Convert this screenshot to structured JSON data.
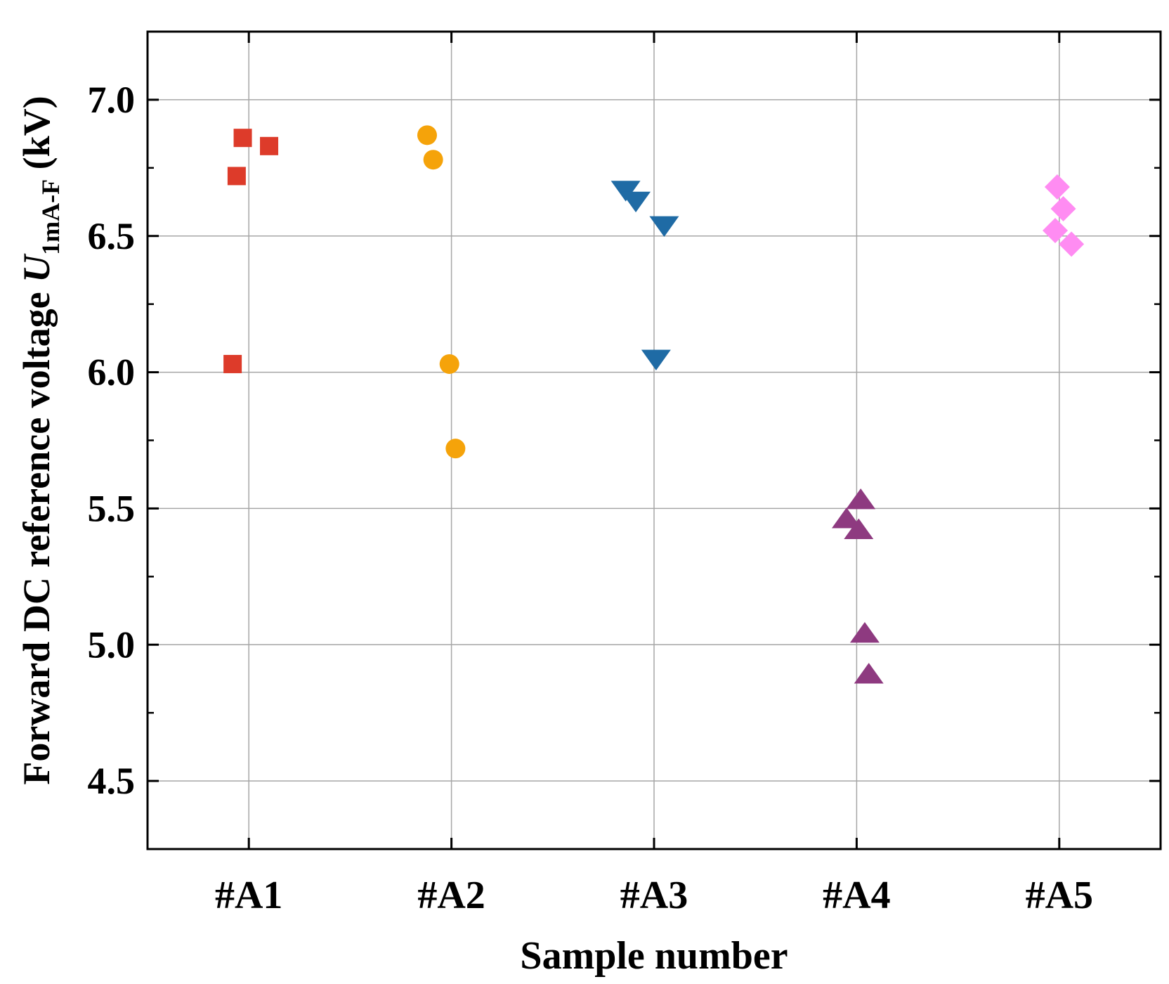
{
  "chart_data": {
    "type": "scatter",
    "title": "",
    "xlabel": "Sample number",
    "ylabel": {
      "prefix": "Forward DC reference voltage ",
      "symbol": "U",
      "subscript": "1mA-F",
      "suffix": " (kV)"
    },
    "categories": [
      "#A1",
      "#A2",
      "#A3",
      "#A4",
      "#A5"
    ],
    "xlim": [
      0.5,
      5.5
    ],
    "ylim": [
      4.25,
      7.25
    ],
    "yticks": [
      "4.5",
      "5.0",
      "5.5",
      "6.0",
      "6.5",
      "7.0"
    ],
    "ytick_values": [
      4.5,
      5.0,
      5.5,
      6.0,
      6.5,
      7.0
    ],
    "grid": true,
    "series": [
      {
        "name": "#A1",
        "marker": "square",
        "color": "#DD3B2A",
        "points": [
          {
            "x": 0.97,
            "y": 6.86
          },
          {
            "x": 1.1,
            "y": 6.83
          },
          {
            "x": 0.94,
            "y": 6.72
          },
          {
            "x": 0.92,
            "y": 6.03
          }
        ]
      },
      {
        "name": "#A2",
        "marker": "circle",
        "color": "#F5A30A",
        "points": [
          {
            "x": 1.88,
            "y": 6.87
          },
          {
            "x": 1.91,
            "y": 6.78
          },
          {
            "x": 1.99,
            "y": 6.03
          },
          {
            "x": 2.02,
            "y": 5.72
          }
        ]
      },
      {
        "name": "#A3",
        "marker": "triangle-down",
        "color": "#1F6BA5",
        "points": [
          {
            "x": 2.86,
            "y": 6.67
          },
          {
            "x": 2.91,
            "y": 6.63
          },
          {
            "x": 3.05,
            "y": 6.54
          },
          {
            "x": 3.01,
            "y": 6.05
          }
        ]
      },
      {
        "name": "#A4",
        "marker": "triangle-up",
        "color": "#8E3A80",
        "points": [
          {
            "x": 4.02,
            "y": 5.53
          },
          {
            "x": 3.95,
            "y": 5.46
          },
          {
            "x": 4.01,
            "y": 5.42
          },
          {
            "x": 4.04,
            "y": 5.04
          },
          {
            "x": 4.06,
            "y": 4.89
          }
        ]
      },
      {
        "name": "#A5",
        "marker": "diamond",
        "color": "#FF8CF2",
        "points": [
          {
            "x": 4.99,
            "y": 6.68
          },
          {
            "x": 5.02,
            "y": 6.6
          },
          {
            "x": 4.98,
            "y": 6.52
          },
          {
            "x": 5.06,
            "y": 6.47
          }
        ]
      }
    ]
  }
}
